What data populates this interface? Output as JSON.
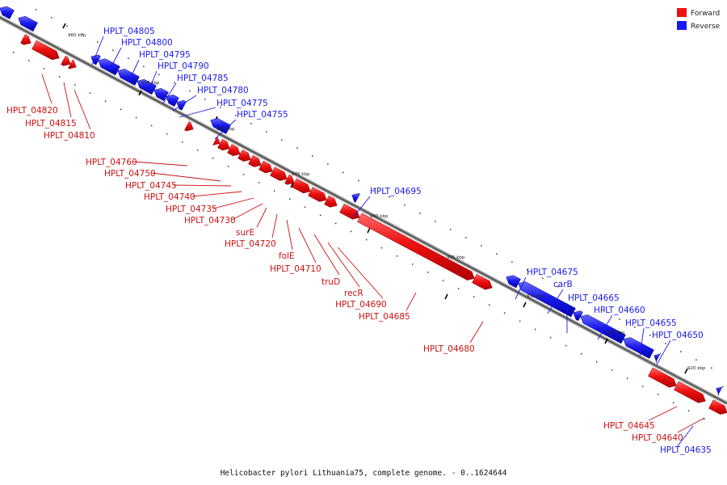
{
  "legend": {
    "forward_label": "Forward",
    "reverse_label": "Reverse",
    "forward_color": "#ee1111",
    "reverse_color": "#1a1aee"
  },
  "caption": "Helicobacter pylori Lithuania75, complete genome. - 0..1624644",
  "ticks": [
    "960 kbp",
    "955 kbp",
    "950 kbp",
    "945 kbp",
    "940 kbp",
    "935 kbp",
    "930 kbp",
    "925 kbp",
    "920 kbp"
  ],
  "genes": {
    "HPLT_04805": "HPLT_04805",
    "HPLT_04800": "HPLT_04800",
    "HPLT_04795": "HPLT_04795",
    "HPLT_04790": "HPLT_04790",
    "HPLT_04785": "HPLT_04785",
    "HPLT_04780": "HPLT_04780",
    "HPLT_04775": "HPLT_04775",
    "HPLT_04755": "HPLT_04755",
    "HPLT_04820": "HPLT_04820",
    "HPLT_04815": "HPLT_04815",
    "HPLT_04810": "HPLT_04810",
    "HPLT_04760": "HPLT_04760",
    "HPLT_04750": "HPLT_04750",
    "HPLT_04745": "HPLT_04745",
    "HPLT_04740": "HPLT_04740",
    "HPLT_04735": "HPLT_04735",
    "HPLT_04730": "HPLT_04730",
    "surE": "surE",
    "HPLT_04720": "HPLT_04720",
    "folE": "folE",
    "HPLT_04710": "HPLT_04710",
    "truD": "truD",
    "recR": "recR",
    "HPLT_04690": "HPLT_04690",
    "HPLT_04685": "HPLT_04685",
    "HPLT_04680": "HPLT_04680",
    "HPLT_04695": "HPLT_04695",
    "HPLT_04675": "HPLT_04675",
    "carB": "carB",
    "HPLT_04665": "HPLT_04665",
    "HPLT_04660": "HPLT_04660",
    "HPLT_04655": "HPLT_04655",
    "HPLT_04650": "HPLT_04650",
    "HPLT_04645": "HPLT_04645",
    "HPLT_04640": "HPLT_04640",
    "HPLT_04635": "HPLT_04635"
  }
}
